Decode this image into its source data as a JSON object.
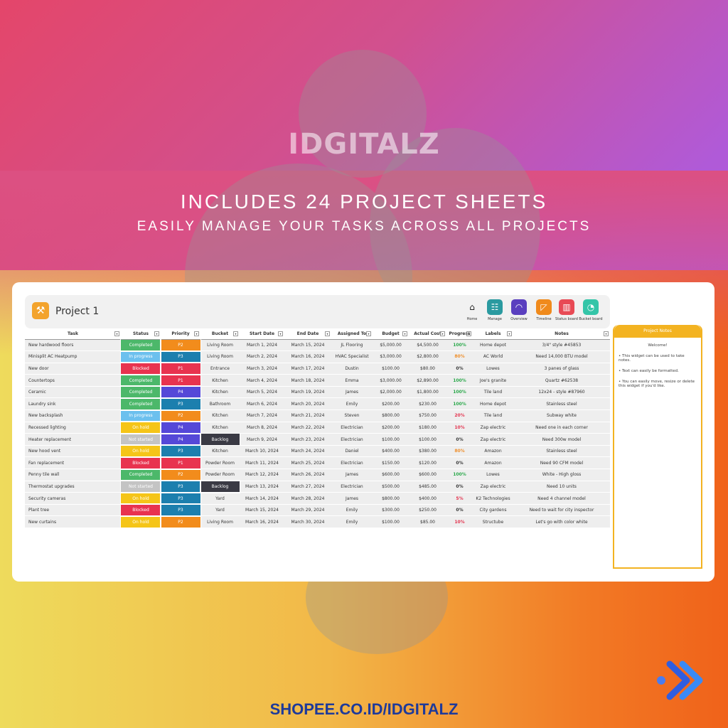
{
  "promo": {
    "watermark": "IDGITALZ",
    "headline": "INCLUDES 24 PROJECT SHEETS",
    "subheadline": "EASILY MANAGE YOUR TASKS ACROSS ALL PROJECTS",
    "footer": "SHOPEE.CO.ID/IDGITALZ"
  },
  "sheet": {
    "title": "Project 1",
    "nav": [
      {
        "label": "Home",
        "icon": "home-icon",
        "color": "#f1f1f1"
      },
      {
        "label": "Manage",
        "icon": "hierarchy-icon",
        "color": "#2a9aa0"
      },
      {
        "label": "Overview",
        "icon": "gauge-icon",
        "color": "#5a3fbf"
      },
      {
        "label": "Timeline",
        "icon": "timeline-icon",
        "color": "#f08a1c"
      },
      {
        "label": "Status board",
        "icon": "board-icon",
        "color": "#e84a55"
      },
      {
        "label": "Bucket board",
        "icon": "bucket-icon",
        "color": "#34c5a8"
      }
    ],
    "columns": [
      "Task",
      "Status",
      "Priority",
      "Bucket",
      "Start Date",
      "End Date",
      "Assigned To",
      "Budget",
      "Actual Cost",
      "Progress",
      "Labels",
      "Notes"
    ],
    "rows": [
      [
        "New hardwood floors",
        "Completed",
        "P2",
        "Living Room",
        "March 1, 2024",
        "March 15, 2024",
        "JL Flooring",
        "$5,000.00",
        "$4,500.00",
        "100%",
        "Home depot",
        "3/4\" style #45853"
      ],
      [
        "Minisplit AC Heatpump",
        "In progress",
        "P3",
        "Living Room",
        "March 2, 2024",
        "March 16, 2024",
        "HVAC Specialist",
        "$3,000.00",
        "$2,800.00",
        "80%",
        "AC World",
        "Need 14,000 BTU model"
      ],
      [
        "New door",
        "Blocked",
        "P1",
        "Entrance",
        "March 3, 2024",
        "March 17, 2024",
        "Dustin",
        "$100.00",
        "$80.00",
        "0%",
        "Lowes",
        "3 panes of glass"
      ],
      [
        "Countertops",
        "Completed",
        "P1",
        "Kitchen",
        "March 4, 2024",
        "March 18, 2024",
        "Emma",
        "$3,000.00",
        "$2,890.00",
        "100%",
        "Joe's granite",
        "Quartz #62538"
      ],
      [
        "Ceramic",
        "Completed",
        "P4",
        "Kitchen",
        "March 5, 2024",
        "March 19, 2024",
        "James",
        "$2,000.00",
        "$1,800.00",
        "100%",
        "Tile land",
        "12x24 - style #87960"
      ],
      [
        "Laundry sink",
        "Completed",
        "P3",
        "Bathroom",
        "March 6, 2024",
        "March 20, 2024",
        "Emily",
        "$200.00",
        "$230.00",
        "100%",
        "Home depot",
        "Stainless steel"
      ],
      [
        "New backsplash",
        "In progress",
        "P2",
        "Kitchen",
        "March 7, 2024",
        "March 21, 2024",
        "Steven",
        "$800.00",
        "$750.00",
        "20%",
        "Tile land",
        "Subway white"
      ],
      [
        "Recessed lighting",
        "On hold",
        "P4",
        "Kitchen",
        "March 8, 2024",
        "March 22, 2024",
        "Electrician",
        "$200.00",
        "$180.00",
        "10%",
        "Zap electric",
        "Need one in each corner"
      ],
      [
        "Heater replacement",
        "Not started",
        "P4",
        "Backlog",
        "March 9, 2024",
        "March 23, 2024",
        "Electrician",
        "$100.00",
        "$100.00",
        "0%",
        "Zap electric",
        "Need 300w model"
      ],
      [
        "New hood vent",
        "On hold",
        "P3",
        "Kitchen",
        "March 10, 2024",
        "March 24, 2024",
        "Daniel",
        "$400.00",
        "$380.00",
        "80%",
        "Amazon",
        "Stainless steel"
      ],
      [
        "Fan replacement",
        "Blocked",
        "P1",
        "Powder Room",
        "March 11, 2024",
        "March 25, 2024",
        "Electrician",
        "$150.00",
        "$120.00",
        "0%",
        "Amazon",
        "Need 90 CFM model"
      ],
      [
        "Penny tile wall",
        "Completed",
        "P2",
        "Powder Room",
        "March 12, 2024",
        "March 26, 2024",
        "James",
        "$600.00",
        "$600.00",
        "100%",
        "Lowes",
        "White - High gloss"
      ],
      [
        "Thermostat upgrades",
        "Not started",
        "P3",
        "Backlog",
        "March 13, 2024",
        "March 27, 2024",
        "Electrician",
        "$500.00",
        "$485.00",
        "0%",
        "Zap electric",
        "Need 10 units"
      ],
      [
        "Security cameras",
        "On hold",
        "P3",
        "Yard",
        "March 14, 2024",
        "March 28, 2024",
        "James",
        "$800.00",
        "$400.00",
        "5%",
        "K2 Technologies",
        "Need 4 channel model"
      ],
      [
        "Plant tree",
        "Blocked",
        "P3",
        "Yard",
        "March 15, 2024",
        "March 29, 2024",
        "Emily",
        "$300.00",
        "$250.00",
        "0%",
        "City gardens",
        "Need to wait for city inspector"
      ],
      [
        "New curtains",
        "On hold",
        "P2",
        "Living Room",
        "March 16, 2024",
        "March 30, 2024",
        "Emily",
        "$100.00",
        "$85.00",
        "10%",
        "Structube",
        "Let's go with color white"
      ]
    ],
    "notes": {
      "title": "Project Notes",
      "welcome": "Welcome!",
      "lines": [
        "• This widget can be used to take notes.",
        "• Text can easily be formatted.",
        "• You can easily move, resize or delete this widget if you'd like."
      ]
    }
  },
  "colors": {
    "Completed": "#4cb86a",
    "In progress": "#6cc0ee",
    "Blocked": "#e8334f",
    "On hold": "#f5c518",
    "Not started": "#c4c4c4",
    "P1": "#e8334f",
    "P2": "#f28c1c",
    "P3": "#1c7fae",
    "P4": "#5548d8",
    "Backlog": "#3a3a44",
    "progress_full": "#29a84a",
    "progress_mid": "#ef8e2a",
    "progress_low": "#e3344f",
    "progress_zero": "#333333"
  }
}
